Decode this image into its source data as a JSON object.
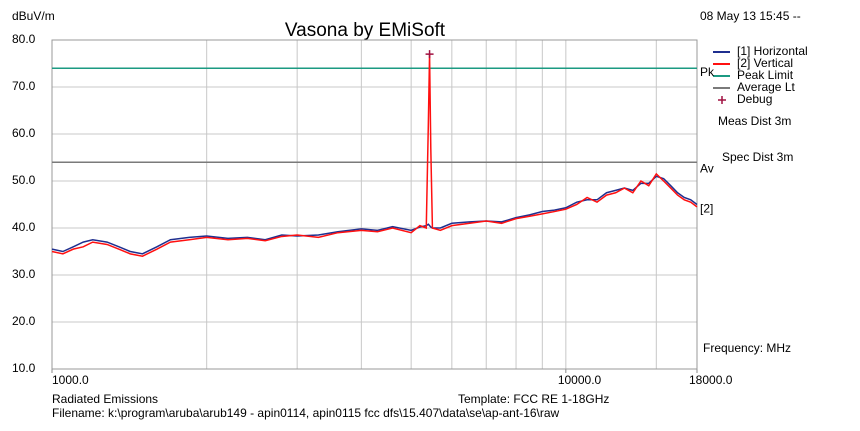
{
  "chart_data": {
    "type": "line",
    "title": "Vasona by EMiSoft",
    "y_label": "dBuV/m",
    "x_label": "Frequency: MHz",
    "date": "08 May 13 15:45 --",
    "meas_dist": "Meas Dist 3m",
    "spec_dist": "Spec Dist 3m",
    "footer_left": "Radiated Emissions",
    "template": "Template: FCC RE 1-18GHz",
    "filename": "Filename: k:\\program\\aruba\\arub149 - apin0114, apin0115 fcc dfs\\15.407\\data\\se\\ap-ant-16\\raw",
    "annotations": [
      {
        "text": "Pk",
        "x": 18000,
        "y": 73
      },
      {
        "text": "Av",
        "x": 18000,
        "y": 52.5
      },
      {
        "text": "[2]",
        "x": 18000,
        "y": 44
      }
    ],
    "x_scale": "log",
    "xlim": [
      1000,
      18000
    ],
    "xticks": [
      {
        "value": 1000,
        "label": "1000.0"
      },
      {
        "value": 10000,
        "label": "10000.0"
      },
      {
        "value": 18000,
        "label": "18000.0"
      }
    ],
    "xgrid": [
      2000,
      3000,
      4000,
      5000,
      6000,
      7000,
      8000,
      9000,
      10000,
      15000
    ],
    "ylim": [
      10,
      80
    ],
    "yticks": [
      {
        "value": 10,
        "label": "10.0"
      },
      {
        "value": 20,
        "label": "20.0"
      },
      {
        "value": 30,
        "label": "30.0"
      },
      {
        "value": 40,
        "label": "40.0"
      },
      {
        "value": 50,
        "label": "50.0"
      },
      {
        "value": 60,
        "label": "60.0"
      },
      {
        "value": 70,
        "label": "70.0"
      },
      {
        "value": 80,
        "label": "80.0"
      }
    ],
    "grid": true,
    "series": [
      {
        "name": "Peak Limit",
        "color": "#1b9a82",
        "x": [
          1000,
          18000
        ],
        "values": [
          74,
          74
        ]
      },
      {
        "name": "Average Lt",
        "color": "#7a7a7a",
        "x": [
          1000,
          18000
        ],
        "values": [
          54,
          54
        ]
      },
      {
        "name": "[1] Horizontal",
        "color": "#1f2f8f",
        "x": [
          1000,
          1050,
          1100,
          1150,
          1200,
          1280,
          1350,
          1420,
          1500,
          1600,
          1700,
          1850,
          2000,
          2200,
          2400,
          2600,
          2800,
          3000,
          3300,
          3600,
          4000,
          4300,
          4600,
          5000,
          5200,
          5350,
          5400,
          5430,
          5460,
          5500,
          5700,
          6000,
          6500,
          7000,
          7500,
          8000,
          8500,
          9000,
          9500,
          10000,
          10500,
          11000,
          11500,
          12000,
          12500,
          13000,
          13500,
          14000,
          14500,
          15000,
          15500,
          16000,
          16500,
          17000,
          17500,
          18000
        ],
        "values": [
          35.5,
          35,
          36,
          37,
          37.5,
          37,
          36,
          35,
          34.5,
          36,
          37.5,
          38,
          38.3,
          37.8,
          38,
          37.5,
          38.5,
          38.3,
          38.5,
          39.2,
          39.8,
          39.5,
          40.3,
          39.5,
          40.2,
          40.5,
          40.8,
          40.5,
          40.2,
          40,
          40,
          41,
          41.3,
          41.5,
          41.3,
          42.2,
          42.8,
          43.5,
          43.8,
          44.3,
          45.5,
          46,
          46,
          47.5,
          48,
          48.5,
          48,
          49.5,
          49.5,
          51,
          50.5,
          49,
          47.5,
          46.5,
          46,
          45
        ]
      },
      {
        "name": "[2] Vertical",
        "color": "#ff1010",
        "x": [
          1000,
          1050,
          1100,
          1150,
          1200,
          1280,
          1350,
          1420,
          1500,
          1600,
          1700,
          1850,
          2000,
          2200,
          2400,
          2600,
          2800,
          3000,
          3300,
          3600,
          4000,
          4300,
          4600,
          5000,
          5200,
          5350,
          5400,
          5430,
          5460,
          5500,
          5700,
          6000,
          6500,
          7000,
          7500,
          8000,
          8500,
          9000,
          9500,
          10000,
          10500,
          11000,
          11500,
          12000,
          12500,
          13000,
          13500,
          14000,
          14500,
          15000,
          15500,
          16000,
          16500,
          17000,
          17500,
          18000
        ],
        "values": [
          35,
          34.5,
          35.5,
          36,
          37,
          36.5,
          35.5,
          34.5,
          34,
          35.5,
          37,
          37.5,
          38,
          37.5,
          37.8,
          37.3,
          38.2,
          38.5,
          38,
          39,
          39.5,
          39.2,
          40,
          39,
          40.5,
          40,
          62,
          77,
          57,
          40,
          39.5,
          40.5,
          41,
          41.5,
          41,
          42,
          42.5,
          43,
          43.5,
          44,
          45,
          46.5,
          45.5,
          47,
          47.5,
          48.5,
          47.5,
          50,
          49,
          51.5,
          50,
          48.5,
          47,
          46,
          45.5,
          44.5
        ]
      },
      {
        "name": "Debug",
        "color": "#a01040",
        "marker": "+",
        "x": [
          5430
        ],
        "values": [
          77
        ]
      }
    ]
  }
}
